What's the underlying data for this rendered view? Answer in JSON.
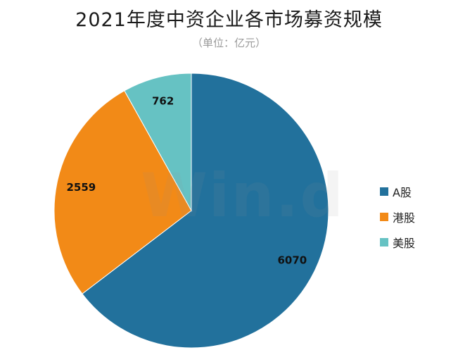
{
  "chart_data": {
    "type": "pie",
    "title": "2021年度中资企业各市场募资规模",
    "subtitle": "（单位：亿元）",
    "categories": [
      "A股",
      "港股",
      "美股"
    ],
    "values": [
      6070,
      2559,
      762
    ],
    "colors": [
      "#22719c",
      "#f28a17",
      "#66c2c3"
    ],
    "data_labels": [
      "6070",
      "2559",
      "762"
    ],
    "legend_position": "right"
  },
  "watermark": "Win.d"
}
